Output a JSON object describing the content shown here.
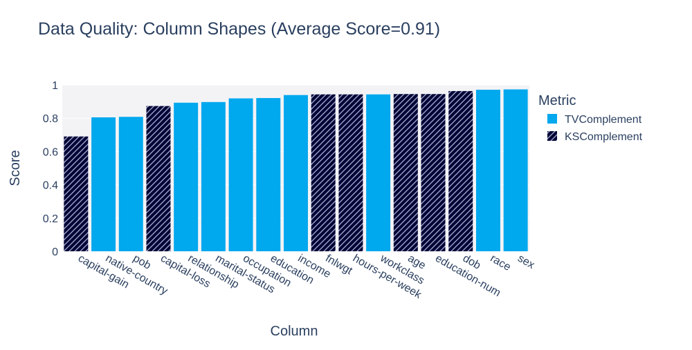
{
  "colors": {
    "tv": "#00A8EE",
    "ks": "#000036",
    "plot_bg": "#F3F3F6",
    "grid": "#ffffff",
    "text": "#2a3f5f",
    "hatch": "#9fa9c6"
  },
  "chart_data": {
    "type": "bar",
    "title": "Data Quality: Column Shapes (Average Score=0.91)",
    "xlabel": "Column",
    "ylabel": "Score",
    "ylim": [
      0,
      1
    ],
    "yticks": [
      "0",
      "0.2",
      "0.4",
      "0.6",
      "0.8",
      "1"
    ],
    "legend": {
      "title": "Metric",
      "position": "top-right",
      "entries": [
        {
          "name": "TVComplement",
          "key": "tv"
        },
        {
          "name": "KSComplement",
          "key": "ks"
        }
      ]
    },
    "categories": [
      "capital-gain",
      "native-country",
      "pob",
      "capital-loss",
      "relationship",
      "marital-status",
      "occupation",
      "education",
      "income",
      "fnlwgt",
      "hours-per-week",
      "workclass",
      "age",
      "education-num",
      "dob",
      "race",
      "sex"
    ],
    "metrics": [
      "KSComplement",
      "TVComplement",
      "TVComplement",
      "KSComplement",
      "TVComplement",
      "TVComplement",
      "TVComplement",
      "TVComplement",
      "TVComplement",
      "KSComplement",
      "KSComplement",
      "TVComplement",
      "KSComplement",
      "KSComplement",
      "KSComplement",
      "TVComplement",
      "TVComplement"
    ],
    "values": [
      0.69,
      0.805,
      0.808,
      0.873,
      0.893,
      0.897,
      0.919,
      0.921,
      0.939,
      0.943,
      0.943,
      0.943,
      0.945,
      0.945,
      0.963,
      0.971,
      0.973
    ]
  }
}
